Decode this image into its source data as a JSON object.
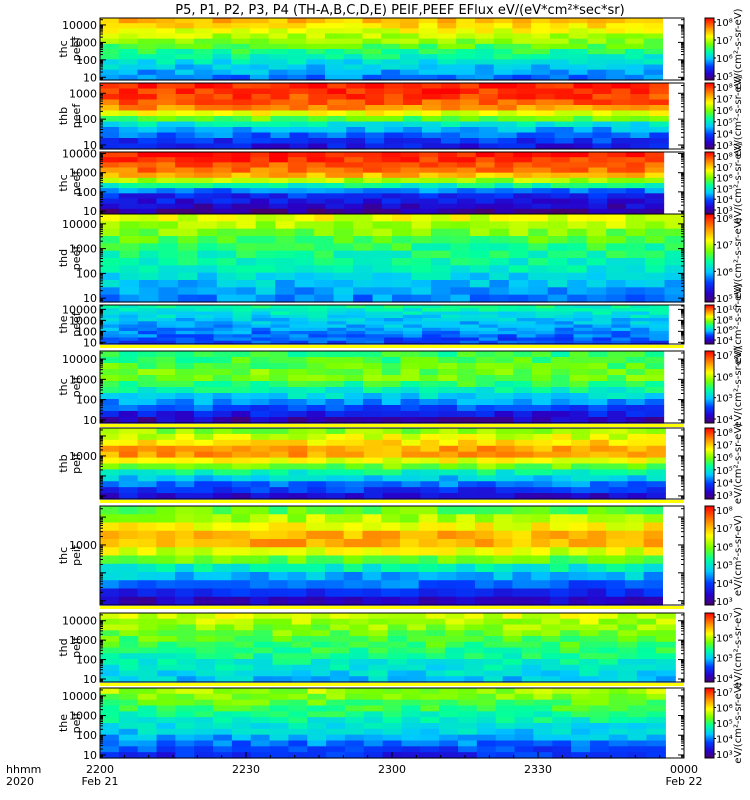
{
  "title": "P5, P1, P2, P3, P4 (TH-A,B,C,D,E) PEIF,PEEF EFlux eV/(eV*cm²*sec*sr)",
  "chart_data": [
    {
      "type": "heatmap",
      "label": [
        "thc",
        "peef"
      ],
      "ylog": true,
      "ylim": [
        7,
        25000
      ],
      "yticks": [
        "10",
        "100",
        "1000",
        "10000"
      ],
      "ytickvals": [
        10,
        100,
        1000,
        10000
      ],
      "cbar_ticks": [
        "10⁵",
        "10⁶",
        "10⁷",
        "10⁸"
      ],
      "cbar_unit": "eV/(cm²-s-sr-eV)",
      "data_end_frac": 0.963,
      "levels": [
        0.78,
        0.6,
        0.42,
        0.27
      ]
    },
    {
      "type": "heatmap",
      "label": [
        "thb",
        "peef"
      ],
      "ylog": true,
      "ylim": [
        7,
        2500
      ],
      "yticks": [
        "10",
        "100",
        "1000"
      ],
      "ytickvals": [
        10,
        100,
        1000
      ],
      "cbar_ticks": [
        "10³",
        "10⁴",
        "10⁵",
        "10⁶",
        "10⁷",
        "10⁸"
      ],
      "cbar_unit": "eV/(cm²-s-sr-eV)",
      "data_end_frac": 0.973,
      "levels": [
        0.97,
        0.88,
        0.36,
        0.14
      ]
    },
    {
      "type": "heatmap",
      "label": [
        "thc",
        "peef"
      ],
      "ylog": true,
      "ylim": [
        7,
        12000
      ],
      "yticks": [
        "10",
        "100",
        "1000",
        "10000"
      ],
      "ytickvals": [
        10,
        100,
        1000,
        10000
      ],
      "cbar_ticks": [
        "10³",
        "10⁴",
        "10⁵",
        "10⁶",
        "10⁷",
        "10⁸"
      ],
      "cbar_unit": "eV/(cm²-s-sr-eV)",
      "data_end_frac": 0.965,
      "levels": [
        0.98,
        0.84,
        0.22,
        0.05
      ]
    },
    {
      "type": "heatmap",
      "label": [
        "thd",
        "peef"
      ],
      "ylog": true,
      "ylim": [
        7,
        25000
      ],
      "yticks": [
        "10",
        "100",
        "1000",
        "10000"
      ],
      "ytickvals": [
        10,
        100,
        1000,
        10000
      ],
      "cbar_ticks": [
        "10⁵",
        "10⁶",
        "10⁷",
        "10⁸"
      ],
      "cbar_unit": "eV/(cm²-s-sr-eV)",
      "data_end_frac": 1.0,
      "levels": [
        0.68,
        0.5,
        0.4,
        0.28
      ]
    },
    {
      "type": "heatmap",
      "label": [
        "the",
        "peef"
      ],
      "ylog": true,
      "ylim": [
        7,
        25000
      ],
      "yticks": [
        "10",
        "100",
        "1000",
        "10000"
      ],
      "ytickvals": [
        10,
        100,
        1000,
        10000
      ],
      "cbar_ticks": [
        "10⁴",
        "10⁶",
        "10⁸",
        "10¹⁰"
      ],
      "cbar_unit": "eV/(cm²-s-sr-eV)",
      "data_end_frac": 0.973,
      "levels": [
        0.45,
        0.36,
        0.3,
        0.22
      ]
    },
    {
      "type": "heatmap",
      "label": [
        "thc",
        "peif"
      ],
      "ylog": true,
      "ylim": [
        7,
        25000
      ],
      "yticks": [
        "10",
        "100",
        "1000",
        "10000"
      ],
      "ytickvals": [
        10,
        100,
        1000,
        10000
      ],
      "cbar_ticks": [
        "10⁴",
        "10⁵",
        "10⁶",
        "10⁷"
      ],
      "cbar_unit": "eV/(cm²-s-sr-eV)",
      "data_end_frac": 0.965,
      "levels": [
        0.5,
        0.58,
        0.35,
        0.08
      ]
    },
    {
      "type": "heatmap",
      "label": [
        "thb",
        "peif"
      ],
      "ylog": true,
      "ylim": [
        7,
        25000
      ],
      "yticks": [
        "1000"
      ],
      "ytickvals": [
        1000
      ],
      "cbar_ticks": [
        "10³",
        "10⁴",
        "10⁵",
        "10⁶",
        "10⁷",
        "10⁸"
      ],
      "cbar_unit": "eV/(cm²-s-sr-eV)",
      "data_end_frac": 0.968,
      "levels": [
        0.6,
        0.86,
        0.4,
        0.12
      ]
    },
    {
      "type": "heatmap",
      "label": [
        "thc",
        "peif"
      ],
      "ylog": true,
      "ylim": [
        7,
        25000
      ],
      "yticks": [
        "1000"
      ],
      "ytickvals": [
        1000
      ],
      "cbar_ticks": [
        "10³",
        "10⁴",
        "10⁵",
        "10⁶",
        "10⁷",
        "10⁸"
      ],
      "cbar_unit": "eV/(cm²-s-sr-eV)",
      "data_end_frac": 0.963,
      "levels": [
        0.55,
        0.84,
        0.38,
        0.1
      ]
    },
    {
      "type": "heatmap",
      "label": [
        "thd",
        "peif"
      ],
      "ylog": true,
      "ylim": [
        7,
        25000
      ],
      "yticks": [
        "10",
        "100",
        "1000",
        "10000"
      ],
      "ytickvals": [
        10,
        100,
        1000,
        10000
      ],
      "cbar_ticks": [
        "10⁴",
        "10⁵",
        "10⁶",
        "10⁷"
      ],
      "cbar_unit": "eV/(cm²-s-sr-eV)",
      "data_end_frac": 0.985,
      "levels": [
        0.66,
        0.55,
        0.45,
        0.35
      ]
    },
    {
      "type": "heatmap",
      "label": [
        "the",
        "peif"
      ],
      "ylog": true,
      "ylim": [
        7,
        25000
      ],
      "yticks": [
        "10",
        "100",
        "1000",
        "10000"
      ],
      "ytickvals": [
        10,
        100,
        1000,
        10000
      ],
      "cbar_ticks": [
        "10³",
        "10⁴",
        "10⁵",
        "10⁶",
        "10⁷"
      ],
      "cbar_unit": "eV/(cm²-s-sr-eV)",
      "data_end_frac": 0.968,
      "levels": [
        0.62,
        0.48,
        0.35,
        0.18
      ]
    }
  ],
  "x_axis": {
    "row_labels": [
      "hhmm",
      "2020"
    ],
    "ticks": [
      {
        "frac": 0.0,
        "top": "2200",
        "bottom": "Feb 21"
      },
      {
        "frac": 0.25,
        "top": "2230",
        "bottom": ""
      },
      {
        "frac": 0.5,
        "top": "2300",
        "bottom": ""
      },
      {
        "frac": 0.75,
        "top": "2330",
        "bottom": ""
      },
      {
        "frac": 1.0,
        "top": "0000",
        "bottom": "Feb 22"
      }
    ]
  },
  "colors": {
    "axis": "#000000",
    "separator": "#ffff00",
    "background": "#ffffff"
  }
}
